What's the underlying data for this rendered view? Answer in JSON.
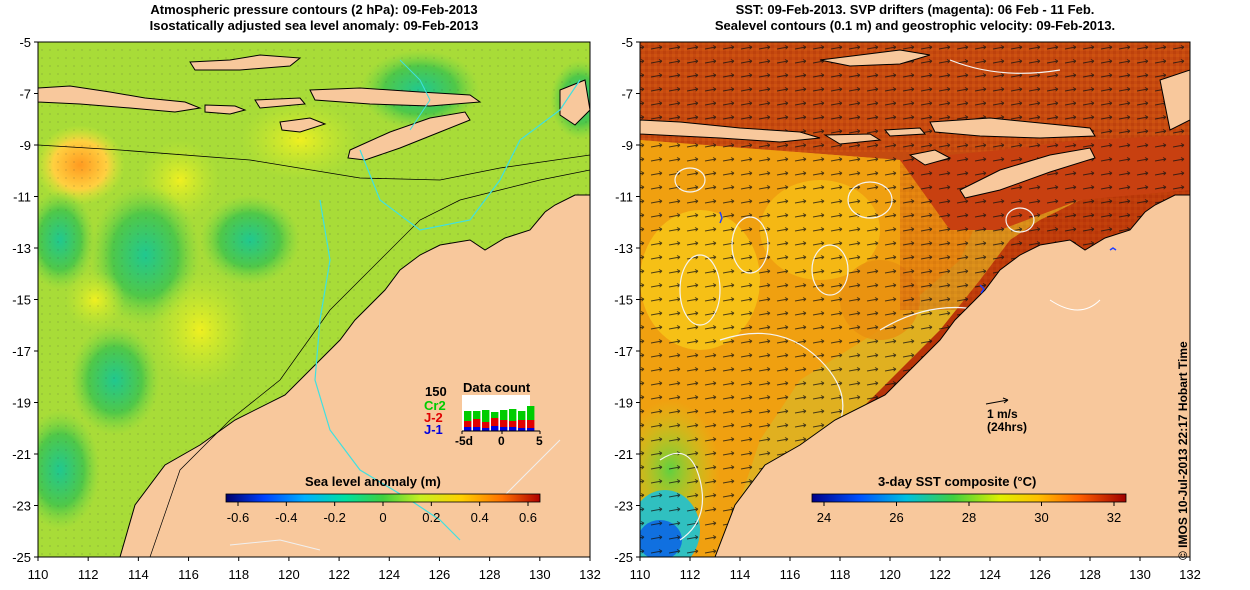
{
  "left_panel": {
    "title_line1": "Atmospheric pressure contours (2 hPa): 09-Feb-2013",
    "title_line2": "Isostatically adjusted sea level anomaly: 09-Feb-2013",
    "colorbar_label": "Sea level anomaly (m)",
    "colorbar_ticks": [
      "-0.6",
      "-0.4",
      "-0.2",
      "0",
      "0.2",
      "0.4",
      "0.6"
    ],
    "data_count": {
      "title": "Data count",
      "ymax_label": "150",
      "missions": [
        {
          "name": "Cr2",
          "color": "#00cc00"
        },
        {
          "name": "J-2",
          "color": "#e00000"
        },
        {
          "name": "J-1",
          "color": "#0000dd"
        }
      ],
      "x_ticks": [
        "-5d",
        "0",
        "5"
      ]
    }
  },
  "right_panel": {
    "title_line1": "SST: 09-Feb-2013. SVP drifters (magenta): 06 Feb - 11 Feb.",
    "title_line2": "Sealevel contours (0.1 m) and geostrophic velocity: 09-Feb-2013.",
    "colorbar_label": "3-day SST composite (°C)",
    "colorbar_ticks": [
      "24",
      "26",
      "28",
      "30",
      "32"
    ],
    "velocity_scale_label": "1 m/s",
    "velocity_scale_sublabel": "(24hrs)"
  },
  "axes": {
    "x_ticks": [
      "110",
      "112",
      "114",
      "116",
      "118",
      "120",
      "122",
      "124",
      "126",
      "128",
      "130",
      "132"
    ],
    "y_ticks": [
      "-5",
      "-7",
      "-9",
      "-11",
      "-13",
      "-15",
      "-17",
      "-19",
      "-21",
      "-23",
      "-25"
    ]
  },
  "credit": "© IMOS 10-Jul-2013 22:17 Hobart Time",
  "colors": {
    "land": "#f8c89c",
    "coast_line": "#000000",
    "cyan_contour": "#40e0e0"
  }
}
